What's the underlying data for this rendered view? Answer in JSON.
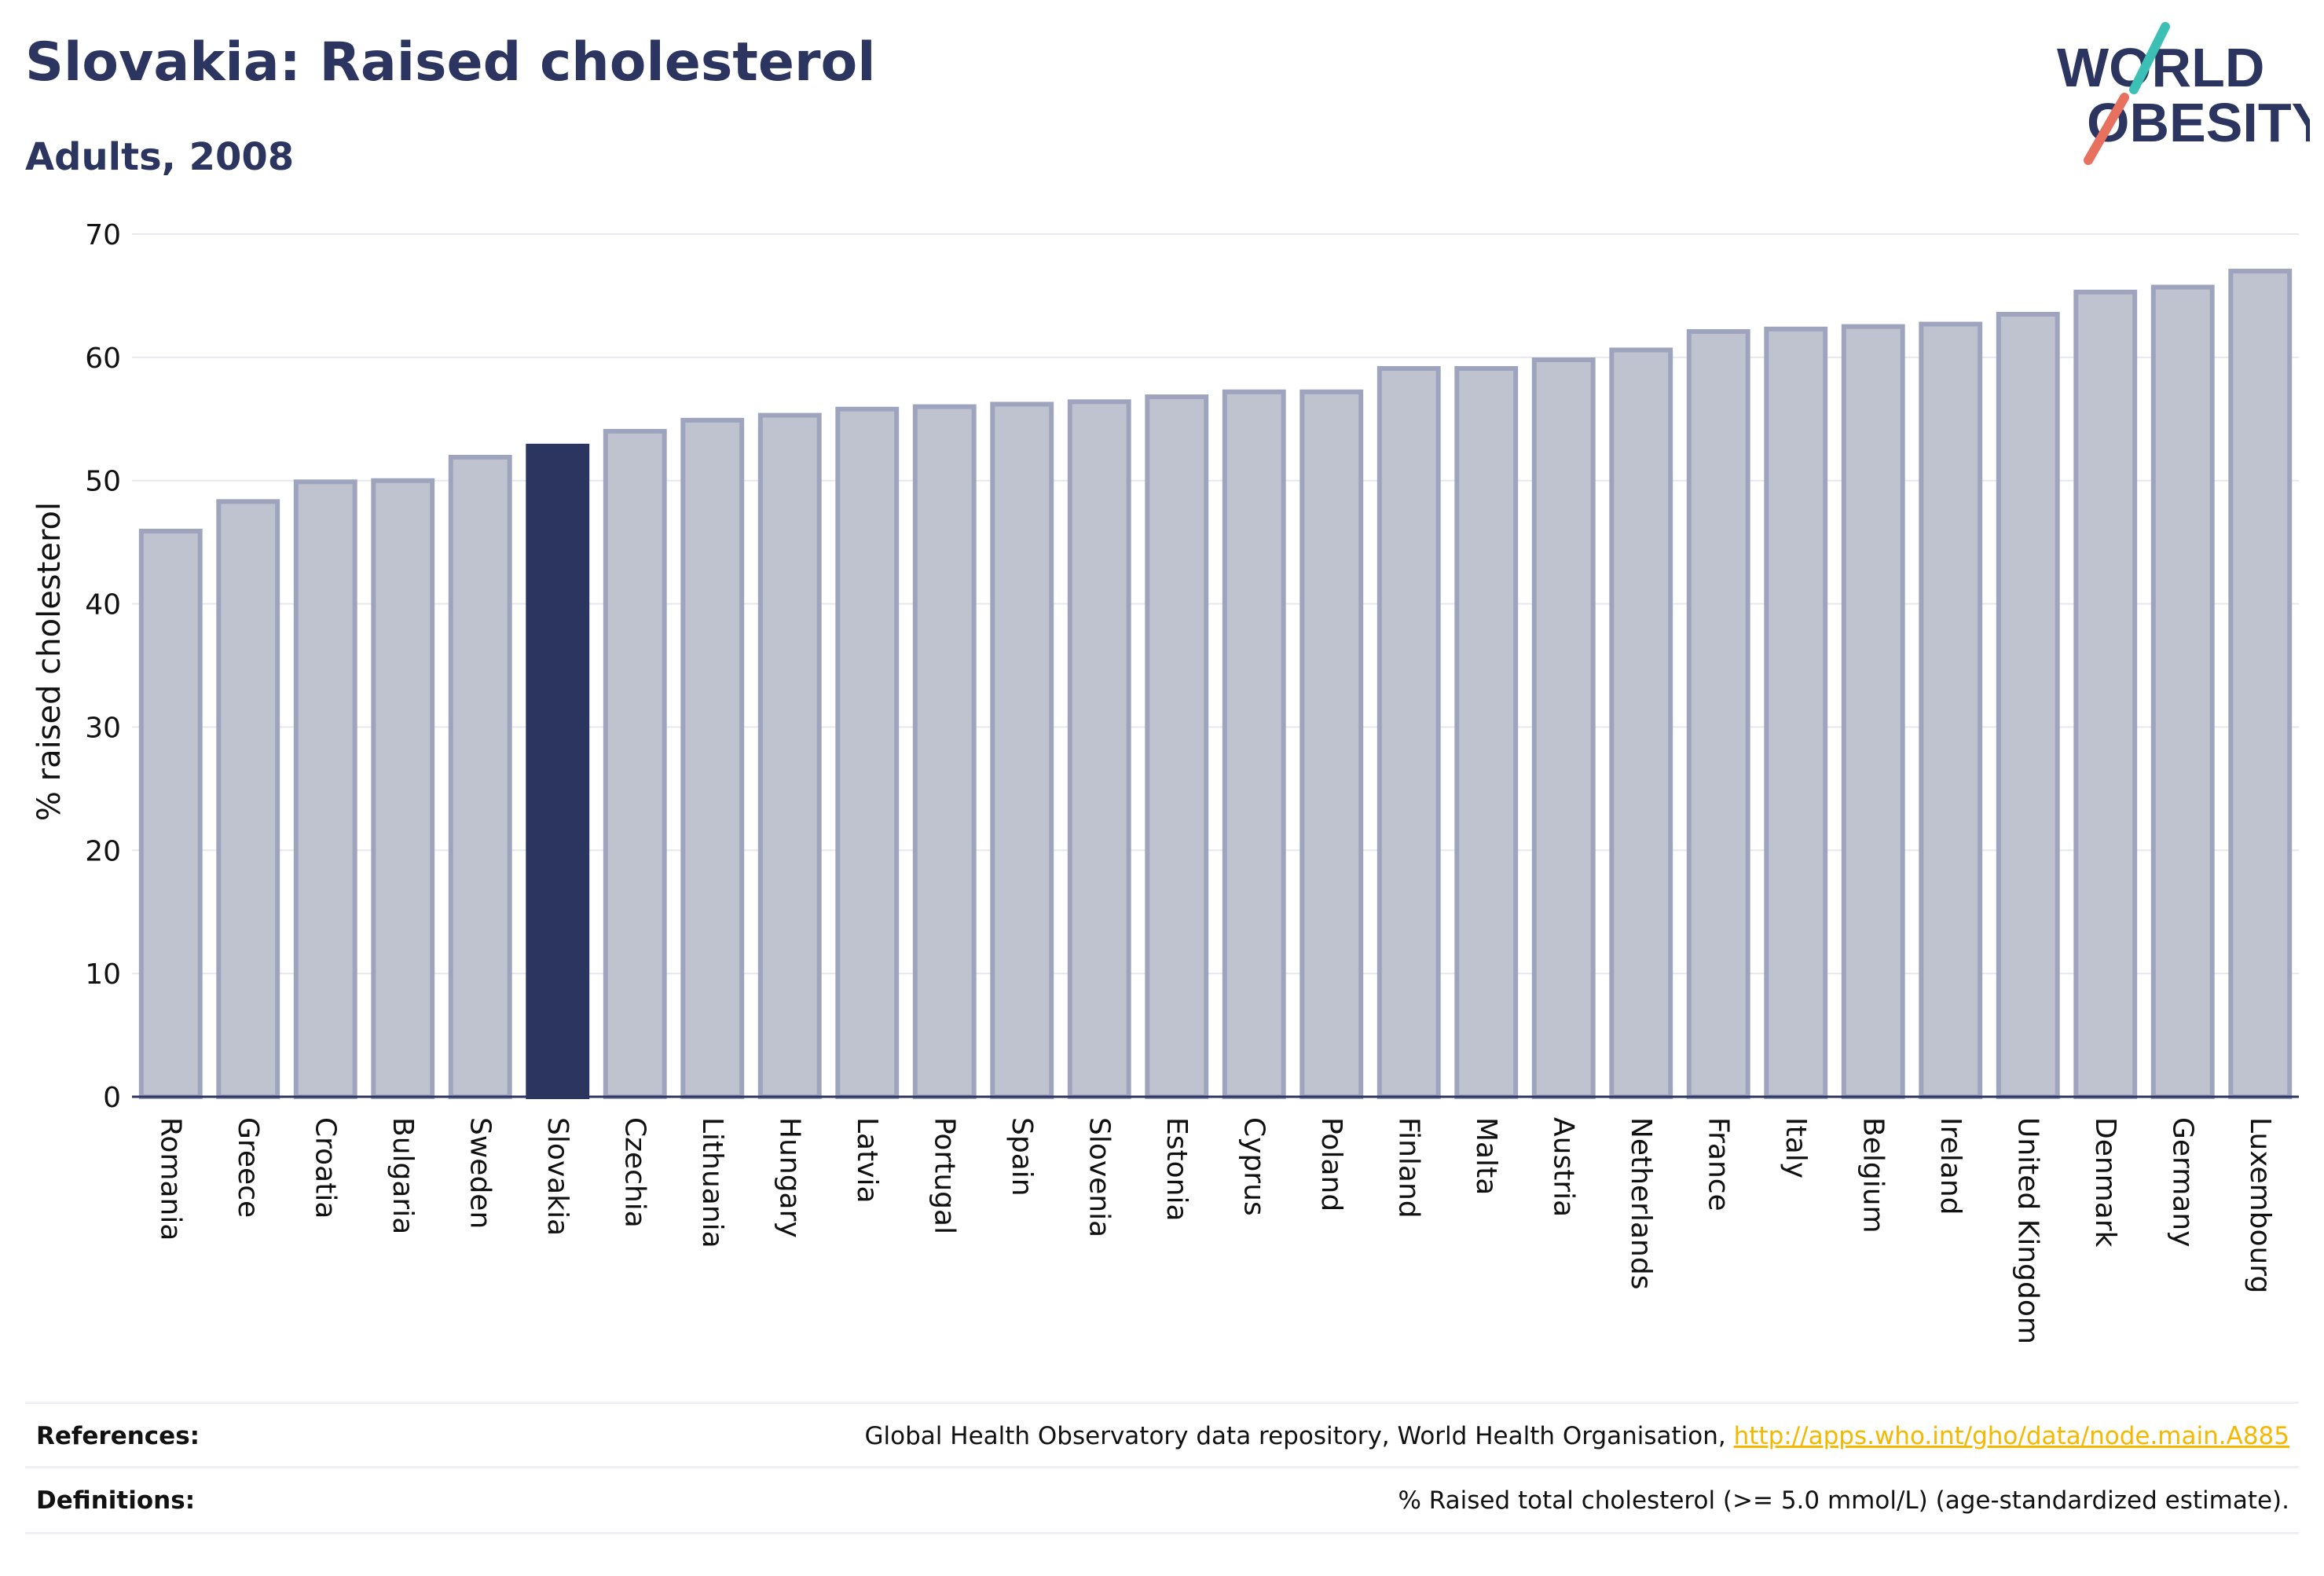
{
  "header": {
    "title": "Slovakia: Raised cholesterol",
    "subtitle": "Adults, 2008"
  },
  "logo": {
    "line1": "WORLD",
    "line2": "OBESITY",
    "slash_colors": [
      "#3cbfb4",
      "#e8705f"
    ]
  },
  "colors": {
    "highlight": "#2b3560",
    "bar_fill": "#bfc3d0",
    "bar_stroke": "#9ea4bd",
    "text": "#2b3560",
    "link": "#f5b800"
  },
  "chart_data": {
    "type": "bar",
    "ylabel": "% raised cholesterol",
    "ylim": [
      0,
      70
    ],
    "yticks": [
      0,
      10,
      20,
      30,
      40,
      50,
      60,
      70
    ],
    "grid": true,
    "highlight": "Slovakia",
    "categories": [
      "Romania",
      "Greece",
      "Croatia",
      "Bulgaria",
      "Sweden",
      "Slovakia",
      "Czechia",
      "Lithuania",
      "Hungary",
      "Latvia",
      "Portugal",
      "Spain",
      "Slovenia",
      "Estonia",
      "Cyprus",
      "Poland",
      "Finland",
      "Malta",
      "Austria",
      "Netherlands",
      "France",
      "Italy",
      "Belgium",
      "Ireland",
      "United Kingdom",
      "Denmark",
      "Germany",
      "Luxembourg"
    ],
    "values": [
      45.9,
      48.3,
      49.9,
      50.0,
      51.9,
      52.8,
      54.0,
      54.9,
      55.3,
      55.8,
      56.0,
      56.2,
      56.4,
      56.8,
      57.2,
      57.2,
      59.1,
      59.1,
      59.8,
      60.6,
      62.1,
      62.3,
      62.5,
      62.7,
      63.5,
      65.3,
      65.7,
      67.0
    ]
  },
  "footer": {
    "references_label": "References:",
    "references_text": "Global Health Observatory data repository, World Health Organisation,",
    "references_link": "http://apps.who.int/gho/data/node.main.A885",
    "definitions_label": "Definitions:",
    "definitions_text": "% Raised total cholesterol (>= 5.0 mmol/L) (age-standardized estimate)."
  }
}
